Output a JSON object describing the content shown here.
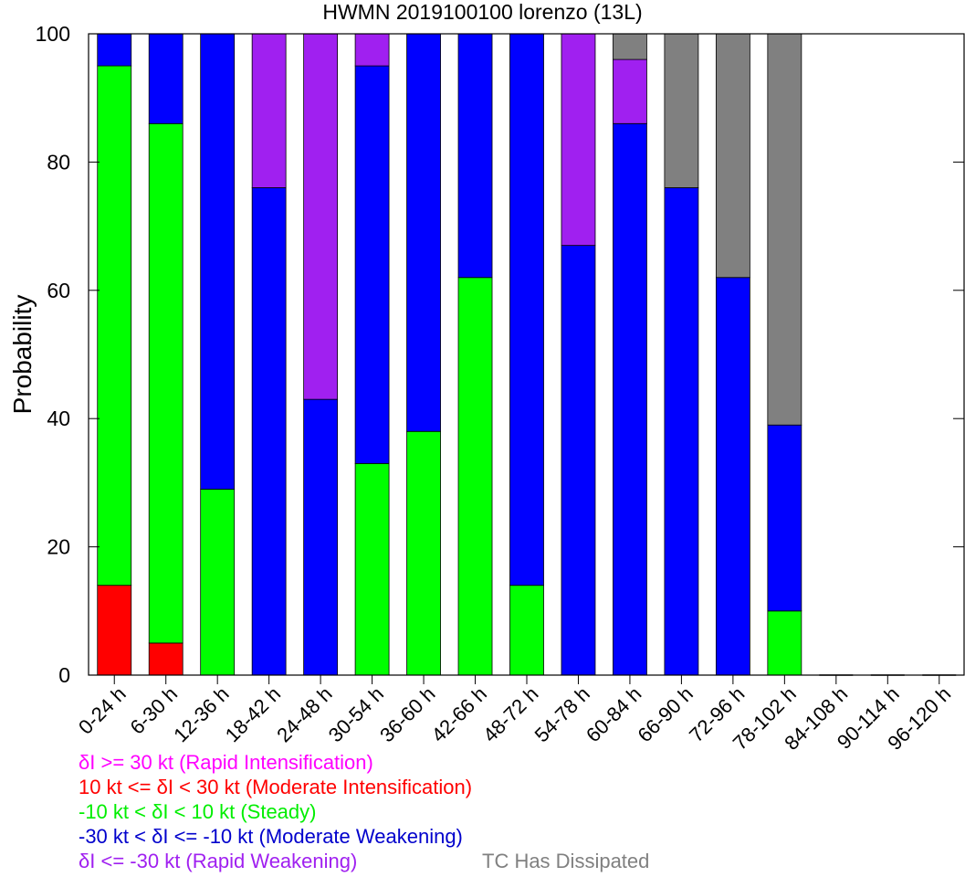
{
  "chart_data": {
    "type": "bar",
    "stacked": true,
    "title": "HWMN 2019100100 lorenzo (13L)",
    "ylabel": "Probability",
    "xlabel": "",
    "ylim": [
      0,
      100
    ],
    "yticks": [
      0,
      20,
      40,
      60,
      80,
      100
    ],
    "categories": [
      "0-24 h",
      "6-30 h",
      "12-36 h",
      "18-42 h",
      "24-48 h",
      "30-54 h",
      "36-60 h",
      "42-66 h",
      "48-72 h",
      "54-78 h",
      "60-84 h",
      "66-90 h",
      "72-96 h",
      "78-102 h",
      "84-108 h",
      "90-114 h",
      "96-120 h"
    ],
    "series": [
      {
        "name": "10 kt <= δI < 30 kt (Moderate Intensification)",
        "color": "#ff0000",
        "values": [
          14,
          5,
          0,
          0,
          0,
          0,
          0,
          0,
          0,
          0,
          0,
          0,
          0,
          0,
          0,
          0,
          0
        ]
      },
      {
        "name": "-10 kt < δI < 10 kt (Steady)",
        "color": "#00ff00",
        "values": [
          81,
          81,
          29,
          0,
          0,
          33,
          38,
          62,
          14,
          0,
          0,
          0,
          0,
          10,
          0,
          0,
          0
        ]
      },
      {
        "name": "-30 kt < δI <= -10 kt (Moderate Weakening)",
        "color": "#0000ff",
        "values": [
          5,
          14,
          71,
          76,
          43,
          62,
          62,
          38,
          86,
          67,
          86,
          76,
          62,
          29,
          0,
          0,
          0
        ]
      },
      {
        "name": "δI <= -30 kt (Rapid Weakening)",
        "color": "#a020f0",
        "values": [
          0,
          0,
          0,
          24,
          57,
          5,
          0,
          0,
          0,
          33,
          10,
          0,
          0,
          0,
          0,
          0,
          0
        ]
      },
      {
        "name": "TC Has Dissipated",
        "color": "#808080",
        "values": [
          0,
          0,
          0,
          0,
          0,
          0,
          0,
          0,
          0,
          0,
          4,
          24,
          38,
          61,
          0,
          0,
          0
        ]
      }
    ],
    "legend": [
      {
        "text": "δI >= 30 kt (Rapid Intensification)",
        "color": "#ff00ff"
      },
      {
        "text": "10 kt <= δI < 30 kt (Moderate Intensification)",
        "color": "#ff0000"
      },
      {
        "text": "-10 kt < δI < 10 kt (Steady)",
        "color": "#00ee00"
      },
      {
        "text": "-30 kt < δI <= -10 kt (Moderate Weakening)",
        "color": "#0000cc"
      },
      {
        "text": "δI <= -30 kt (Rapid Weakening)",
        "color": "#a020f0"
      },
      {
        "text": "TC Has Dissipated",
        "color": "#808080"
      }
    ],
    "legend_placement": "bottom-left"
  }
}
